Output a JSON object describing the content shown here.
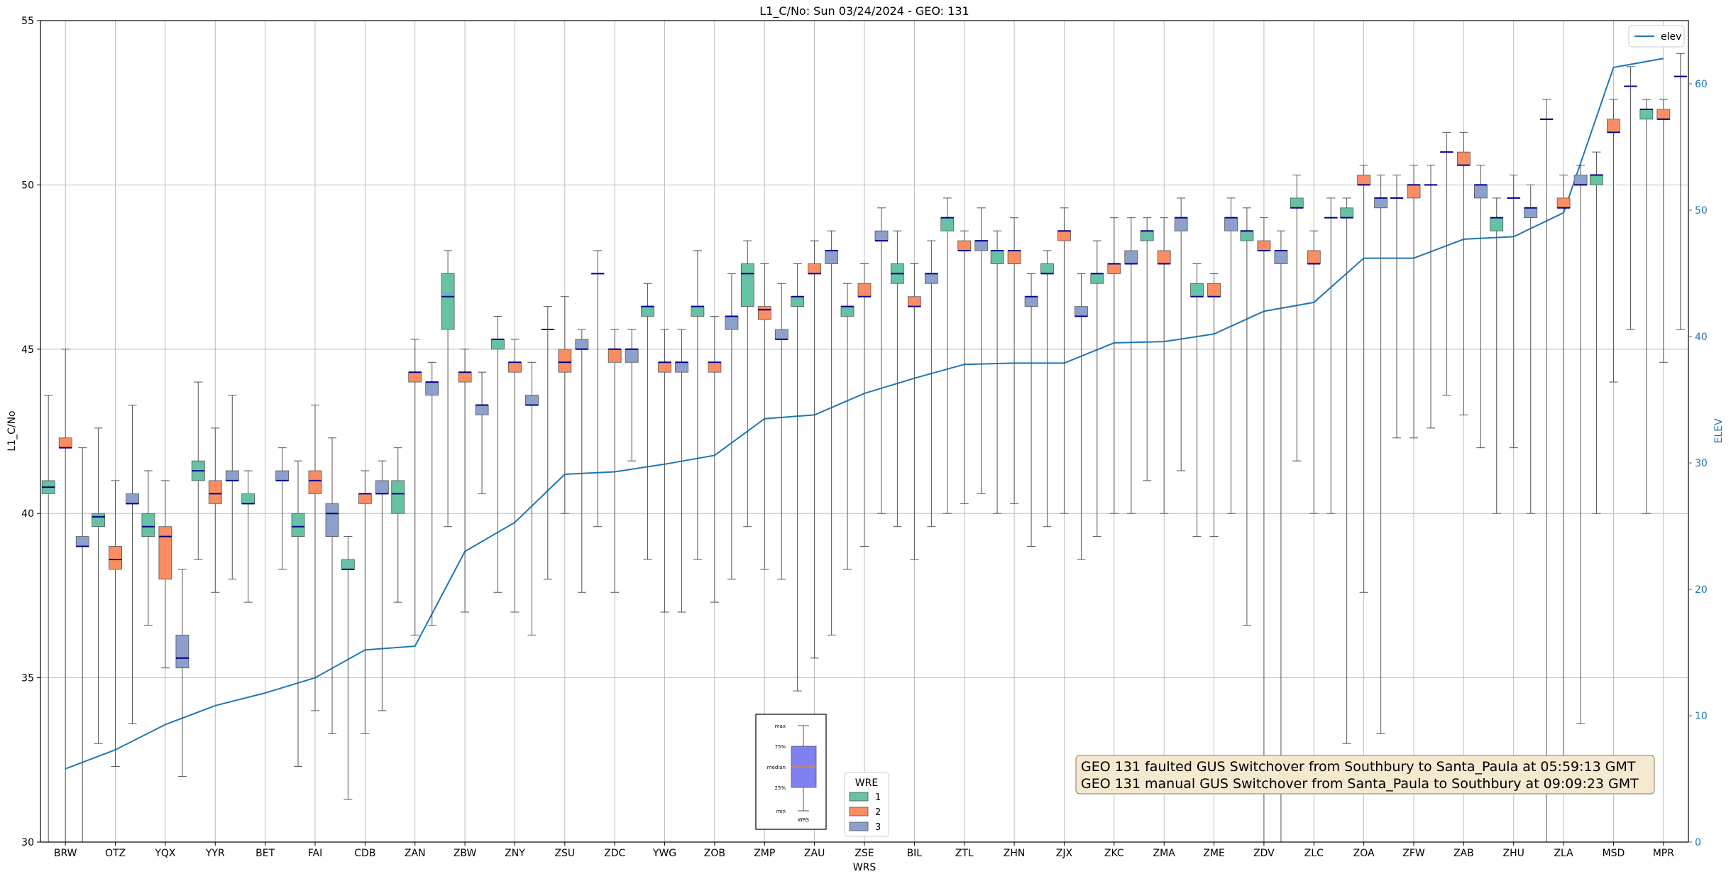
{
  "chart_data": {
    "type": "box",
    "title": "L1_C/No: Sun 03/24/2024 - GEO: 131",
    "xlabel": "WRS",
    "ylabel": "L1_C/No",
    "y2label": "ELEV",
    "ylim": [
      30,
      55
    ],
    "y2lim": [
      0,
      65
    ],
    "yticks": [
      "30",
      "35",
      "40",
      "45",
      "50",
      "55"
    ],
    "y2ticks": [
      "0",
      "10",
      "20",
      "30",
      "40",
      "50",
      "60"
    ],
    "grid": true,
    "colors": {
      "1": "#66c2a5",
      "2": "#fc8d62",
      "3": "#8da0cb",
      "elev": "#1f77b4",
      "median": "#00008b"
    },
    "categories": [
      "BRW",
      "OTZ",
      "YQX",
      "YYR",
      "BET",
      "FAI",
      "CDB",
      "ZAN",
      "ZBW",
      "ZNY",
      "ZSU",
      "ZDC",
      "YWG",
      "ZOB",
      "ZMP",
      "ZAU",
      "ZSE",
      "BIL",
      "ZTL",
      "ZHN",
      "ZJX",
      "ZKC",
      "ZMA",
      "ZME",
      "ZDV",
      "ZLC",
      "ZOA",
      "ZFW",
      "ZAB",
      "ZHU",
      "ZLA",
      "MSD",
      "MPR"
    ],
    "legend_wre": {
      "title": "WRE",
      "entries": [
        "1",
        "2",
        "3"
      ],
      "placement": "bottom-center"
    },
    "legend_elev": {
      "entries": [
        "elev"
      ],
      "placement": "top-right"
    },
    "elev": [
      5.8,
      7.3,
      9.3,
      10.8,
      11.8,
      13.0,
      15.2,
      15.5,
      23.0,
      25.3,
      29.1,
      29.3,
      29.9,
      30.6,
      33.5,
      33.8,
      35.5,
      36.7,
      37.8,
      37.9,
      37.9,
      39.5,
      39.6,
      40.2,
      42.0,
      42.7,
      46.2,
      46.2,
      47.7,
      47.9,
      49.8,
      61.3,
      62.0
    ],
    "boxes": [
      {
        "station": "BRW",
        "wre": 1,
        "min": 30,
        "q1": 40.6,
        "med": 40.8,
        "q3": 41.0,
        "max": 43.6
      },
      {
        "station": "BRW",
        "wre": 2,
        "min": 30,
        "q1": 42.0,
        "med": 42.0,
        "q3": 42.3,
        "max": 45.0
      },
      {
        "station": "BRW",
        "wre": 3,
        "min": 30,
        "q1": 39.0,
        "med": 39.0,
        "q3": 39.3,
        "max": 42.0
      },
      {
        "station": "OTZ",
        "wre": 1,
        "min": 33.0,
        "q1": 39.6,
        "med": 39.9,
        "q3": 40.0,
        "max": 42.6
      },
      {
        "station": "OTZ",
        "wre": 2,
        "min": 32.3,
        "q1": 38.3,
        "med": 38.6,
        "q3": 39.0,
        "max": 41.0
      },
      {
        "station": "OTZ",
        "wre": 3,
        "min": 33.6,
        "q1": 40.3,
        "med": 40.3,
        "q3": 40.6,
        "max": 43.3
      },
      {
        "station": "YQX",
        "wre": 1,
        "min": 36.6,
        "q1": 39.3,
        "med": 39.6,
        "q3": 40.0,
        "max": 41.3
      },
      {
        "station": "YQX",
        "wre": 2,
        "min": 35.3,
        "q1": 38.0,
        "med": 39.3,
        "q3": 39.6,
        "max": 41.0
      },
      {
        "station": "YQX",
        "wre": 3,
        "min": 32.0,
        "q1": 35.3,
        "med": 35.6,
        "q3": 36.3,
        "max": 38.3
      },
      {
        "station": "YYR",
        "wre": 1,
        "min": 38.6,
        "q1": 41.0,
        "med": 41.3,
        "q3": 41.6,
        "max": 44.0
      },
      {
        "station": "YYR",
        "wre": 2,
        "min": 37.6,
        "q1": 40.3,
        "med": 40.6,
        "q3": 41.0,
        "max": 42.6
      },
      {
        "station": "YYR",
        "wre": 3,
        "min": 38.0,
        "q1": 41.0,
        "med": 41.0,
        "q3": 41.3,
        "max": 43.6
      },
      {
        "station": "BET",
        "wre": 1,
        "min": 37.3,
        "q1": 40.3,
        "med": 40.3,
        "q3": 40.6,
        "max": 41.3
      },
      {
        "station": "BET",
        "wre": 3,
        "min": 38.3,
        "q1": 41.0,
        "med": 41.0,
        "q3": 41.3,
        "max": 42.0
      },
      {
        "station": "FAI",
        "wre": 1,
        "min": 32.3,
        "q1": 39.3,
        "med": 39.6,
        "q3": 40.0,
        "max": 41.6
      },
      {
        "station": "FAI",
        "wre": 2,
        "min": 34.0,
        "q1": 40.6,
        "med": 41.0,
        "q3": 41.3,
        "max": 43.3
      },
      {
        "station": "FAI",
        "wre": 3,
        "min": 33.3,
        "q1": 39.3,
        "med": 40.0,
        "q3": 40.3,
        "max": 42.3
      },
      {
        "station": "CDB",
        "wre": 1,
        "min": 31.3,
        "q1": 38.3,
        "med": 38.3,
        "q3": 38.6,
        "max": 39.3
      },
      {
        "station": "CDB",
        "wre": 2,
        "min": 33.3,
        "q1": 40.3,
        "med": 40.6,
        "q3": 40.6,
        "max": 41.3
      },
      {
        "station": "CDB",
        "wre": 3,
        "min": 34.0,
        "q1": 40.6,
        "med": 40.6,
        "q3": 41.0,
        "max": 41.6
      },
      {
        "station": "ZAN",
        "wre": 1,
        "min": 37.3,
        "q1": 40.0,
        "med": 40.6,
        "q3": 41.0,
        "max": 42.0
      },
      {
        "station": "ZAN",
        "wre": 2,
        "min": 36.3,
        "q1": 44.0,
        "med": 44.3,
        "q3": 44.3,
        "max": 45.3
      },
      {
        "station": "ZAN",
        "wre": 3,
        "min": 36.6,
        "q1": 43.6,
        "med": 44.0,
        "q3": 44.0,
        "max": 44.6
      },
      {
        "station": "ZBW",
        "wre": 1,
        "min": 39.6,
        "q1": 45.6,
        "med": 46.6,
        "q3": 47.3,
        "max": 48.0
      },
      {
        "station": "ZBW",
        "wre": 2,
        "min": 37.0,
        "q1": 44.0,
        "med": 44.3,
        "q3": 44.3,
        "max": 45.0
      },
      {
        "station": "ZBW",
        "wre": 3,
        "min": 40.6,
        "q1": 43.0,
        "med": 43.3,
        "q3": 43.3,
        "max": 44.3
      },
      {
        "station": "ZNY",
        "wre": 1,
        "min": 37.6,
        "q1": 45.0,
        "med": 45.3,
        "q3": 45.3,
        "max": 46.0
      },
      {
        "station": "ZNY",
        "wre": 2,
        "min": 37.0,
        "q1": 44.3,
        "med": 44.6,
        "q3": 44.6,
        "max": 45.3
      },
      {
        "station": "ZNY",
        "wre": 3,
        "min": 36.3,
        "q1": 43.3,
        "med": 43.3,
        "q3": 43.6,
        "max": 44.6
      },
      {
        "station": "ZSU",
        "wre": 1,
        "min": 38.0,
        "q1": 45.6,
        "med": 45.6,
        "q3": 45.6,
        "max": 46.3
      },
      {
        "station": "ZSU",
        "wre": 2,
        "min": 40.0,
        "q1": 44.3,
        "med": 44.6,
        "q3": 45.0,
        "max": 46.6
      },
      {
        "station": "ZSU",
        "wre": 3,
        "min": 37.6,
        "q1": 45.0,
        "med": 45.0,
        "q3": 45.3,
        "max": 45.6
      },
      {
        "station": "ZDC",
        "wre": 1,
        "min": 39.6,
        "q1": 47.3,
        "med": 47.3,
        "q3": 47.3,
        "max": 48.0
      },
      {
        "station": "ZDC",
        "wre": 2,
        "min": 37.6,
        "q1": 44.6,
        "med": 45.0,
        "q3": 45.0,
        "max": 45.6
      },
      {
        "station": "ZDC",
        "wre": 3,
        "min": 41.6,
        "q1": 44.6,
        "med": 45.0,
        "q3": 45.0,
        "max": 45.6
      },
      {
        "station": "YWG",
        "wre": 1,
        "min": 38.6,
        "q1": 46.0,
        "med": 46.3,
        "q3": 46.3,
        "max": 47.0
      },
      {
        "station": "YWG",
        "wre": 2,
        "min": 37.0,
        "q1": 44.3,
        "med": 44.6,
        "q3": 44.6,
        "max": 45.6
      },
      {
        "station": "YWG",
        "wre": 3,
        "min": 37.0,
        "q1": 44.3,
        "med": 44.6,
        "q3": 44.6,
        "max": 45.6
      },
      {
        "station": "ZOB",
        "wre": 1,
        "min": 38.6,
        "q1": 46.0,
        "med": 46.3,
        "q3": 46.3,
        "max": 48.0
      },
      {
        "station": "ZOB",
        "wre": 2,
        "min": 37.3,
        "q1": 44.3,
        "med": 44.6,
        "q3": 44.6,
        "max": 46.0
      },
      {
        "station": "ZOB",
        "wre": 3,
        "min": 38.0,
        "q1": 45.6,
        "med": 46.0,
        "q3": 46.0,
        "max": 47.3
      },
      {
        "station": "ZMP",
        "wre": 1,
        "min": 39.6,
        "q1": 46.3,
        "med": 47.3,
        "q3": 47.6,
        "max": 48.3
      },
      {
        "station": "ZMP",
        "wre": 2,
        "min": 38.3,
        "q1": 45.9,
        "med": 46.2,
        "q3": 46.3,
        "max": 47.6
      },
      {
        "station": "ZMP",
        "wre": 3,
        "min": 38.0,
        "q1": 45.3,
        "med": 45.3,
        "q3": 45.6,
        "max": 47.0
      },
      {
        "station": "ZAU",
        "wre": 1,
        "min": 34.6,
        "q1": 46.3,
        "med": 46.6,
        "q3": 46.6,
        "max": 47.6
      },
      {
        "station": "ZAU",
        "wre": 2,
        "min": 35.6,
        "q1": 47.3,
        "med": 47.3,
        "q3": 47.6,
        "max": 48.3
      },
      {
        "station": "ZAU",
        "wre": 3,
        "min": 36.3,
        "q1": 47.6,
        "med": 48.0,
        "q3": 48.0,
        "max": 48.6
      },
      {
        "station": "ZSE",
        "wre": 1,
        "min": 38.3,
        "q1": 46.0,
        "med": 46.3,
        "q3": 46.3,
        "max": 47.0
      },
      {
        "station": "ZSE",
        "wre": 2,
        "min": 39.0,
        "q1": 46.6,
        "med": 46.6,
        "q3": 47.0,
        "max": 47.6
      },
      {
        "station": "ZSE",
        "wre": 3,
        "min": 40.0,
        "q1": 48.3,
        "med": 48.3,
        "q3": 48.6,
        "max": 49.3
      },
      {
        "station": "BIL",
        "wre": 1,
        "min": 39.6,
        "q1": 47.0,
        "med": 47.3,
        "q3": 47.6,
        "max": 48.6
      },
      {
        "station": "BIL",
        "wre": 2,
        "min": 38.6,
        "q1": 46.3,
        "med": 46.3,
        "q3": 46.6,
        "max": 47.6
      },
      {
        "station": "BIL",
        "wre": 3,
        "min": 39.6,
        "q1": 47.0,
        "med": 47.3,
        "q3": 47.3,
        "max": 48.3
      },
      {
        "station": "ZTL",
        "wre": 1,
        "min": 40.0,
        "q1": 48.6,
        "med": 49.0,
        "q3": 49.0,
        "max": 49.6
      },
      {
        "station": "ZTL",
        "wre": 2,
        "min": 40.3,
        "q1": 48.0,
        "med": 48.0,
        "q3": 48.3,
        "max": 48.6
      },
      {
        "station": "ZTL",
        "wre": 3,
        "min": 40.6,
        "q1": 48.0,
        "med": 48.3,
        "q3": 48.3,
        "max": 49.3
      },
      {
        "station": "ZHN",
        "wre": 1,
        "min": 40.0,
        "q1": 47.6,
        "med": 48.0,
        "q3": 48.0,
        "max": 48.6
      },
      {
        "station": "ZHN",
        "wre": 2,
        "min": 40.3,
        "q1": 47.6,
        "med": 48.0,
        "q3": 48.0,
        "max": 49.0
      },
      {
        "station": "ZHN",
        "wre": 3,
        "min": 39.0,
        "q1": 46.3,
        "med": 46.6,
        "q3": 46.6,
        "max": 47.3
      },
      {
        "station": "ZJX",
        "wre": 1,
        "min": 39.6,
        "q1": 47.3,
        "med": 47.3,
        "q3": 47.6,
        "max": 48.0
      },
      {
        "station": "ZJX",
        "wre": 2,
        "min": 40.0,
        "q1": 48.3,
        "med": 48.6,
        "q3": 48.6,
        "max": 49.3
      },
      {
        "station": "ZJX",
        "wre": 3,
        "min": 38.6,
        "q1": 46.0,
        "med": 46.0,
        "q3": 46.3,
        "max": 47.3
      },
      {
        "station": "ZKC",
        "wre": 1,
        "min": 39.3,
        "q1": 47.0,
        "med": 47.3,
        "q3": 47.3,
        "max": 48.3
      },
      {
        "station": "ZKC",
        "wre": 2,
        "min": 40.0,
        "q1": 47.3,
        "med": 47.6,
        "q3": 47.6,
        "max": 49.0
      },
      {
        "station": "ZKC",
        "wre": 3,
        "min": 40.0,
        "q1": 47.6,
        "med": 47.6,
        "q3": 48.0,
        "max": 49.0
      },
      {
        "station": "ZMA",
        "wre": 1,
        "min": 41.0,
        "q1": 48.3,
        "med": 48.6,
        "q3": 48.6,
        "max": 49.0
      },
      {
        "station": "ZMA",
        "wre": 2,
        "min": 40.0,
        "q1": 47.6,
        "med": 47.6,
        "q3": 48.0,
        "max": 49.0
      },
      {
        "station": "ZMA",
        "wre": 3,
        "min": 41.3,
        "q1": 48.6,
        "med": 49.0,
        "q3": 49.0,
        "max": 49.6
      },
      {
        "station": "ZME",
        "wre": 1,
        "min": 39.3,
        "q1": 46.6,
        "med": 46.6,
        "q3": 47.0,
        "max": 47.6
      },
      {
        "station": "ZME",
        "wre": 2,
        "min": 39.3,
        "q1": 46.6,
        "med": 46.6,
        "q3": 47.0,
        "max": 47.3
      },
      {
        "station": "ZME",
        "wre": 3,
        "min": 40.0,
        "q1": 48.6,
        "med": 49.0,
        "q3": 49.0,
        "max": 49.6
      },
      {
        "station": "ZDV",
        "wre": 1,
        "min": 36.6,
        "q1": 48.3,
        "med": 48.6,
        "q3": 48.6,
        "max": 49.3
      },
      {
        "station": "ZDV",
        "wre": 2,
        "min": 30.0,
        "q1": 48.0,
        "med": 48.0,
        "q3": 48.3,
        "max": 49.0
      },
      {
        "station": "ZDV",
        "wre": 3,
        "min": 30.0,
        "q1": 47.6,
        "med": 48.0,
        "q3": 48.0,
        "max": 48.6
      },
      {
        "station": "ZLC",
        "wre": 1,
        "min": 41.6,
        "q1": 49.3,
        "med": 49.3,
        "q3": 49.6,
        "max": 50.3
      },
      {
        "station": "ZLC",
        "wre": 2,
        "min": 40.0,
        "q1": 47.6,
        "med": 47.6,
        "q3": 48.0,
        "max": 48.6
      },
      {
        "station": "ZLC",
        "wre": 3,
        "min": 40.0,
        "q1": 49.0,
        "med": 49.0,
        "q3": 49.0,
        "max": 49.6
      },
      {
        "station": "ZOA",
        "wre": 1,
        "min": 33.0,
        "q1": 49.0,
        "med": 49.0,
        "q3": 49.3,
        "max": 49.6
      },
      {
        "station": "ZOA",
        "wre": 2,
        "min": 37.6,
        "q1": 50.0,
        "med": 50.0,
        "q3": 50.3,
        "max": 50.6
      },
      {
        "station": "ZOA",
        "wre": 3,
        "min": 33.3,
        "q1": 49.3,
        "med": 49.6,
        "q3": 49.6,
        "max": 50.3
      },
      {
        "station": "ZFW",
        "wre": 1,
        "min": 42.3,
        "q1": 49.6,
        "med": 49.6,
        "q3": 49.6,
        "max": 50.3
      },
      {
        "station": "ZFW",
        "wre": 2,
        "min": 42.3,
        "q1": 49.6,
        "med": 50.0,
        "q3": 50.0,
        "max": 50.6
      },
      {
        "station": "ZFW",
        "wre": 3,
        "min": 42.6,
        "q1": 50.0,
        "med": 50.0,
        "q3": 50.0,
        "max": 50.6
      },
      {
        "station": "ZAB",
        "wre": 1,
        "min": 43.6,
        "q1": 51.0,
        "med": 51.0,
        "q3": 51.0,
        "max": 51.6
      },
      {
        "station": "ZAB",
        "wre": 2,
        "min": 43.0,
        "q1": 50.6,
        "med": 50.6,
        "q3": 51.0,
        "max": 51.6
      },
      {
        "station": "ZAB",
        "wre": 3,
        "min": 42.0,
        "q1": 49.6,
        "med": 50.0,
        "q3": 50.0,
        "max": 50.6
      },
      {
        "station": "ZHU",
        "wre": 1,
        "min": 40.0,
        "q1": 48.6,
        "med": 49.0,
        "q3": 49.0,
        "max": 49.6
      },
      {
        "station": "ZHU",
        "wre": 2,
        "min": 42.0,
        "q1": 49.6,
        "med": 49.6,
        "q3": 49.6,
        "max": 50.3
      },
      {
        "station": "ZHU",
        "wre": 3,
        "min": 40.0,
        "q1": 49.0,
        "med": 49.3,
        "q3": 49.3,
        "max": 50.0
      },
      {
        "station": "ZLA",
        "wre": 1,
        "min": 30.0,
        "q1": 52.0,
        "med": 52.0,
        "q3": 52.0,
        "max": 52.6
      },
      {
        "station": "ZLA",
        "wre": 2,
        "min": 31.6,
        "q1": 49.3,
        "med": 49.3,
        "q3": 49.6,
        "max": 50.3
      },
      {
        "station": "ZLA",
        "wre": 3,
        "min": 33.6,
        "q1": 50.0,
        "med": 50.0,
        "q3": 50.3,
        "max": 50.6
      },
      {
        "station": "MSD",
        "wre": 1,
        "min": 40.0,
        "q1": 50.0,
        "med": 50.3,
        "q3": 50.3,
        "max": 51.0
      },
      {
        "station": "MSD",
        "wre": 2,
        "min": 44.0,
        "q1": 51.6,
        "med": 51.6,
        "q3": 52.0,
        "max": 52.6
      },
      {
        "station": "MSD",
        "wre": 3,
        "min": 45.6,
        "q1": 53.0,
        "med": 53.0,
        "q3": 53.0,
        "max": 53.6
      },
      {
        "station": "MPR",
        "wre": 1,
        "min": 40.0,
        "q1": 52.0,
        "med": 52.3,
        "q3": 52.3,
        "max": 52.6
      },
      {
        "station": "MPR",
        "wre": 2,
        "min": 44.6,
        "q1": 52.0,
        "med": 52.0,
        "q3": 52.3,
        "max": 52.6
      },
      {
        "station": "MPR",
        "wre": 3,
        "min": 45.6,
        "q1": 53.3,
        "med": 53.3,
        "q3": 53.3,
        "max": 54.0
      }
    ],
    "annotations": [
      "GEO 131 faulted GUS Switchover from Southbury to Santa_Paula at 05:59:13 GMT",
      "GEO 131 manual GUS Switchover from Santa_Paula to Southbury at 09:09:23 GMT"
    ],
    "inset_key": {
      "labels": [
        "max",
        "75%",
        "median",
        "25%",
        "min"
      ],
      "xlabel": "WRS"
    }
  }
}
